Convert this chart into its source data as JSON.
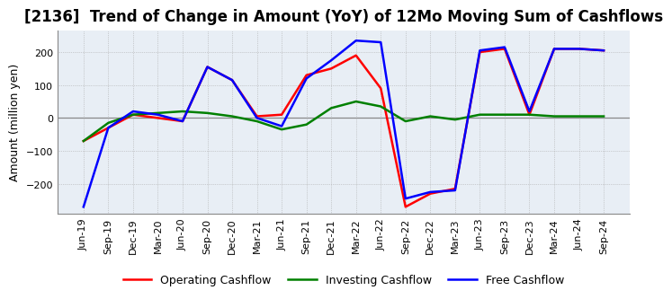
{
  "title": "[2136]  Trend of Change in Amount (YoY) of 12Mo Moving Sum of Cashflows",
  "ylabel": "Amount (million yen)",
  "ylim": [
    -290,
    265
  ],
  "yticks": [
    -200,
    -100,
    0,
    100,
    200
  ],
  "x_labels": [
    "Jun-19",
    "Sep-19",
    "Dec-19",
    "Mar-20",
    "Jun-20",
    "Sep-20",
    "Dec-20",
    "Mar-21",
    "Jun-21",
    "Sep-21",
    "Dec-21",
    "Mar-22",
    "Jun-22",
    "Sep-22",
    "Dec-22",
    "Mar-23",
    "Jun-23",
    "Sep-23",
    "Dec-23",
    "Mar-24",
    "Jun-24",
    "Sep-24"
  ],
  "operating": [
    -70,
    -30,
    10,
    0,
    -10,
    155,
    115,
    5,
    10,
    130,
    150,
    190,
    90,
    -270,
    -230,
    -215,
    200,
    210,
    10,
    210,
    210,
    205
  ],
  "investing": [
    -70,
    -15,
    10,
    15,
    20,
    15,
    5,
    -10,
    -35,
    -20,
    30,
    50,
    35,
    -10,
    5,
    -5,
    10,
    10,
    10,
    5,
    5,
    5
  ],
  "free": [
    -270,
    -30,
    20,
    10,
    -10,
    155,
    115,
    0,
    -25,
    120,
    175,
    235,
    230,
    -245,
    -225,
    -220,
    205,
    215,
    20,
    210,
    210,
    205
  ],
  "op_color": "#ff0000",
  "inv_color": "#008000",
  "free_color": "#0000ff",
  "plot_bg_color": "#e8eef5",
  "fig_bg_color": "#ffffff",
  "grid_color": "#aaaaaa",
  "zero_line_color": "#888888",
  "title_fontsize": 12,
  "label_fontsize": 9,
  "tick_fontsize": 8,
  "legend_fontsize": 9,
  "linewidth": 1.8
}
